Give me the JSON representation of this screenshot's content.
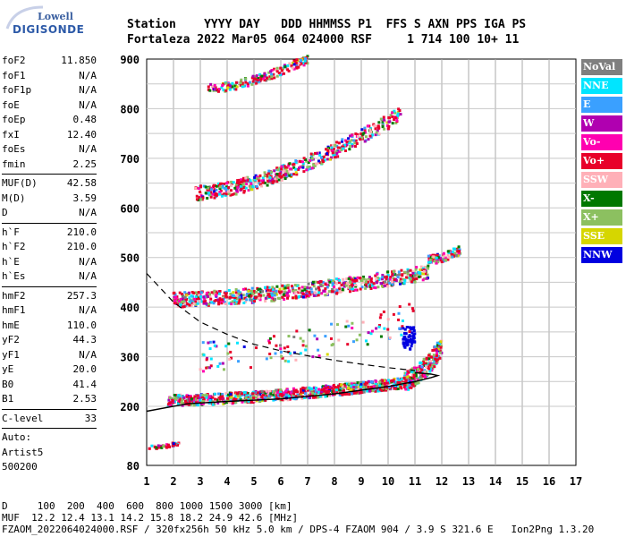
{
  "logo": {
    "line1": "Lowell",
    "line2": "DIGISONDE"
  },
  "header": {
    "row1": "Station    YYYY DAY   DDD HHMMSS P1  FFS S AXN PPS IGA PS",
    "row2": "Fortaleza 2022 Mar05 064 024000 RSF     1 714 100 10+ 11"
  },
  "params": [
    {
      "label": "foF2",
      "value": "11.850"
    },
    {
      "label": "foF1",
      "value": "N/A"
    },
    {
      "label": "foF1p",
      "value": "N/A"
    },
    {
      "label": "foE",
      "value": "N/A"
    },
    {
      "label": "foEp",
      "value": "0.48"
    },
    {
      "label": "fxI",
      "value": "12.40"
    },
    {
      "label": "foEs",
      "value": "N/A"
    },
    {
      "label": "fmin",
      "value": "2.25"
    },
    {
      "label": "MUF(D)",
      "value": "42.58"
    },
    {
      "label": "M(D)",
      "value": "3.59"
    },
    {
      "label": "D",
      "value": "N/A"
    },
    {
      "label": "h`F",
      "value": "210.0"
    },
    {
      "label": "h`F2",
      "value": "210.0"
    },
    {
      "label": "h`E",
      "value": "N/A"
    },
    {
      "label": "h`Es",
      "value": "N/A"
    },
    {
      "label": "hmF2",
      "value": "257.3"
    },
    {
      "label": "hmF1",
      "value": "N/A"
    },
    {
      "label": "hmE",
      "value": "110.0"
    },
    {
      "label": "yF2",
      "value": "44.3"
    },
    {
      "label": "yF1",
      "value": "N/A"
    },
    {
      "label": "yE",
      "value": "20.0"
    },
    {
      "label": "B0",
      "value": "41.4"
    },
    {
      "label": "B1",
      "value": "2.53"
    },
    {
      "label": "C-level",
      "value": "33"
    }
  ],
  "auto": {
    "line1": "Auto:",
    "line2": "Artist5",
    "line3": "500200"
  },
  "legend": [
    {
      "label": "NoVal",
      "color": "#7f7f7f"
    },
    {
      "label": "NNE",
      "color": "#00e5ff"
    },
    {
      "label": "E",
      "color": "#3aa0ff"
    },
    {
      "label": "W",
      "color": "#b000b0"
    },
    {
      "label": "Vo-",
      "color": "#ff00b0"
    },
    {
      "label": "Vo+",
      "color": "#e8002a"
    },
    {
      "label": "SSW",
      "color": "#ffb0b8"
    },
    {
      "label": "X-",
      "color": "#007800"
    },
    {
      "label": "X+",
      "color": "#8cc060"
    },
    {
      "label": "SSE",
      "color": "#d6d600"
    },
    {
      "label": "NNW",
      "color": "#0000e0"
    }
  ],
  "footer": {
    "line1": "D     100  200  400  600  800 1000 1500 3000 [km]",
    "line2": "MUF  12.2 12.4 13.1 14.2 15.8 18.2 24.9 42.6 [MHz]",
    "line3": "FZAOM_2022064024000.RSF / 320fx256h 50 kHz 5.0 km / DPS-4 FZAOM 904 / 3.9 S 321.6 E   Ion2Png 1.3.20"
  },
  "chart_data": {
    "type": "scatter",
    "xlim": [
      1,
      17
    ],
    "ylim": [
      80,
      900
    ],
    "xticks": [
      1,
      2,
      3,
      4,
      5,
      6,
      7,
      8,
      9,
      10,
      11,
      12,
      13,
      14,
      15,
      16,
      17
    ],
    "yticks": [
      80,
      200,
      300,
      400,
      500,
      600,
      700,
      800,
      900
    ],
    "grid": true,
    "xlabel": "",
    "ylabel": "",
    "legend_position": "right",
    "traces": [
      {
        "name": "E",
        "kind": "echo",
        "freq_range": [
          1.1,
          2.0
        ],
        "height": [
          118,
          125
        ]
      },
      {
        "name": "F1",
        "kind": "echo",
        "freq_range": [
          1.8,
          11.2
        ],
        "height": [
          215,
          265
        ]
      },
      {
        "name": "F2",
        "kind": "echo",
        "freq_range": [
          11.0,
          12.0
        ],
        "height": [
          265,
          320
        ]
      },
      {
        "name": "F-2hop",
        "kind": "echo",
        "freq_range": [
          2.0,
          12.7
        ],
        "height": [
          415,
          520
        ]
      },
      {
        "name": "F-3hop",
        "kind": "echo",
        "freq_range": [
          2.8,
          10.5
        ],
        "height": [
          630,
          790
        ]
      },
      {
        "name": "F-4hop",
        "kind": "echo",
        "freq_range": [
          3.3,
          7.0
        ],
        "height": [
          840,
          900
        ]
      }
    ],
    "profile_solid": {
      "f": [
        1.0,
        2.5,
        4.0,
        6.0,
        8.0,
        10.0,
        11.0,
        11.6,
        11.85,
        11.6,
        11.0
      ],
      "h": [
        190,
        205,
        210,
        215,
        225,
        240,
        250,
        258,
        262,
        265,
        268
      ]
    },
    "profile_dashed": {
      "f": [
        1.0,
        2.0,
        3.0,
        4.0,
        5.0,
        6.0,
        7.0,
        8.0,
        9.0,
        10.0,
        11.0
      ],
      "h": [
        468,
        410,
        370,
        345,
        325,
        312,
        302,
        293,
        285,
        278,
        272
      ]
    }
  }
}
